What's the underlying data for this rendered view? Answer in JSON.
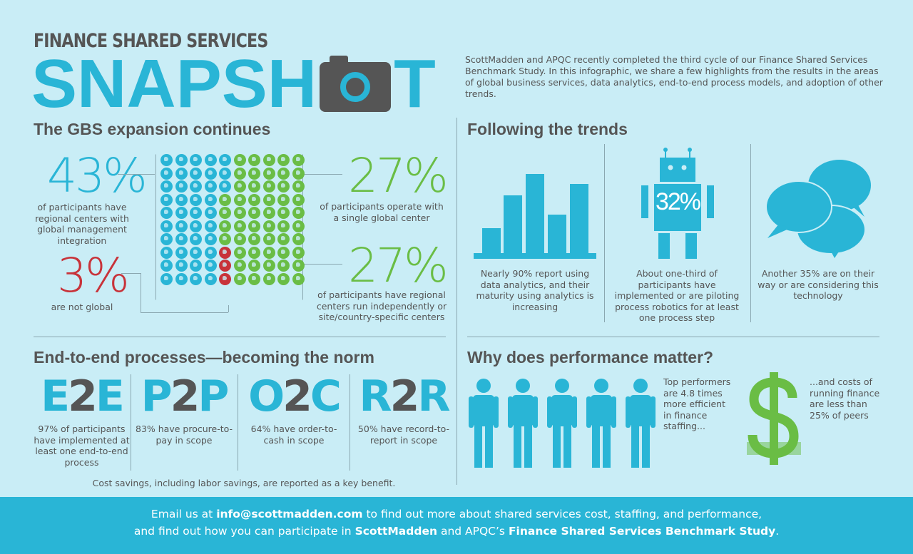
{
  "header": {
    "pretitle": "FINANCE SHARED SERVICES",
    "title_left": "SNAPSH",
    "title_right": "T",
    "camera_icon": "camera-icon",
    "intro": "ScottMadden and APQC recently completed the third cycle of our Finance Shared Services Benchmark Study. In this infographic, we share a few highlights from the results in the areas of global business services, data analytics, end-to-end process models, and adoption of other trends."
  },
  "colors": {
    "blue": "#29b5d6",
    "green": "#6abd45",
    "red": "#c8333a",
    "gray": "#555555",
    "background": "#c9edf6"
  },
  "gbs": {
    "heading": "The GBS expansion continues",
    "stat_regional": {
      "value": "43%",
      "text": "of participants have regional centers with global management integration"
    },
    "stat_single": {
      "value": "27%",
      "text": "of participants operate with a single global center"
    },
    "stat_not_global": {
      "value": "3%",
      "text": "are not global"
    },
    "stat_independent": {
      "value": "27%",
      "text": "of participants have regional centers run independently or site/country-specific centers"
    },
    "waffle": {
      "blue": 43,
      "green": 54,
      "red": 3,
      "icon": "globe-icon"
    }
  },
  "trends": {
    "heading": "Following the trends",
    "items": [
      {
        "icon": "bar-chart-icon",
        "text": "Nearly 90% report using data analytics, and their maturity using analytics is increasing"
      },
      {
        "icon": "robot-icon",
        "badge": "32%",
        "text": "About one-third of participants have implemented or are piloting process robotics for at least one process step"
      },
      {
        "icon": "speech-bubbles-icon",
        "text": "Another 35% are on their way or are considering this technology"
      }
    ]
  },
  "e2e": {
    "heading": "End-to-end processes—becoming the norm",
    "items": [
      {
        "a": "E",
        "b": "2",
        "c": "E",
        "text": "97% of participants have implemented at least one end-to-end process"
      },
      {
        "a": "P",
        "b": "2",
        "c": "P",
        "text": "83% have procure-to-pay in scope"
      },
      {
        "a": "O",
        "b": "2",
        "c": "C",
        "text": "64% have order-to-cash in scope"
      },
      {
        "a": "R",
        "b": "2",
        "c": "R",
        "text": "50% have record-to-report in scope"
      }
    ],
    "note": "Cost savings, including labor savings, are reported as a key benefit."
  },
  "performance": {
    "heading": "Why does performance matter?",
    "people_text": "Top performers are 4.8 times more efficient in finance staffing...",
    "dollar_text": "...and costs of running finance are less than 25% of peers"
  },
  "footer": {
    "l1a": "Email us at ",
    "email": "info@scottmadden.com",
    "l1b": " to find out more about shared services cost, staffing, and performance,",
    "l2a": "and find out how you can participate in ",
    "brand": "ScottMadden",
    "l2b": " and APQC’s ",
    "study": "Finance Shared Services Benchmark Study",
    "l2c": "."
  }
}
